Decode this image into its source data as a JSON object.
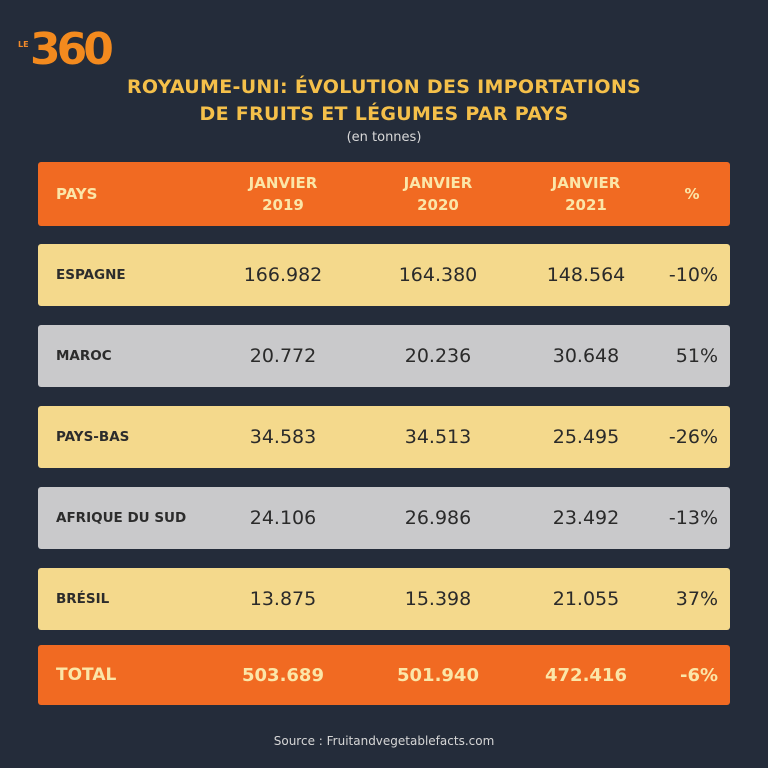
{
  "logo": {
    "prefix": "LE",
    "number": "360"
  },
  "chart_data": {
    "type": "table",
    "title_line1": "ROYAUME-UNI: ÉVOLUTION DES IMPORTATIONS",
    "title_line2": "DE FRUITS ET LÉGUMES PAR PAYS",
    "subtitle": "(en tonnes)",
    "columns": {
      "country": "PAYS",
      "y2019": [
        "JANVIER",
        "2019"
      ],
      "y2020": [
        "JANVIER",
        "2020"
      ],
      "y2021": [
        "JANVIER",
        "2021"
      ],
      "pct": "%"
    },
    "rows": [
      {
        "country": "ESPAGNE",
        "y2019": "166.982",
        "y2020": "164.380",
        "y2021": "148.564",
        "pct": "-10%",
        "color": "#f4d98c"
      },
      {
        "country": "MAROC",
        "y2019": "20.772",
        "y2020": "20.236",
        "y2021": "30.648",
        "pct": "51%",
        "color": "#c9c9cb"
      },
      {
        "country": "PAYS-BAS",
        "y2019": "34.583",
        "y2020": "34.513",
        "y2021": "25.495",
        "pct": "-26%",
        "color": "#f4d98c"
      },
      {
        "country": "AFRIQUE DU SUD",
        "y2019": "24.106",
        "y2020": "26.986",
        "y2021": "23.492",
        "pct": "-13%",
        "color": "#c9c9cb"
      },
      {
        "country": "BRÉSIL",
        "y2019": "13.875",
        "y2020": "15.398",
        "y2021": "21.055",
        "pct": "37%",
        "color": "#f4d98c"
      }
    ],
    "total": {
      "label": "TOTAL",
      "y2019": "503.689",
      "y2020": "501.940",
      "y2021": "472.416",
      "pct": "-6%"
    },
    "source": "Source : Fruitandvegetablefacts.com"
  },
  "colors": {
    "background": "#242c3a",
    "accent": "#f16a22",
    "title": "#f5c04a",
    "row_yellow": "#f4d98c",
    "row_gray": "#c9c9cb"
  }
}
